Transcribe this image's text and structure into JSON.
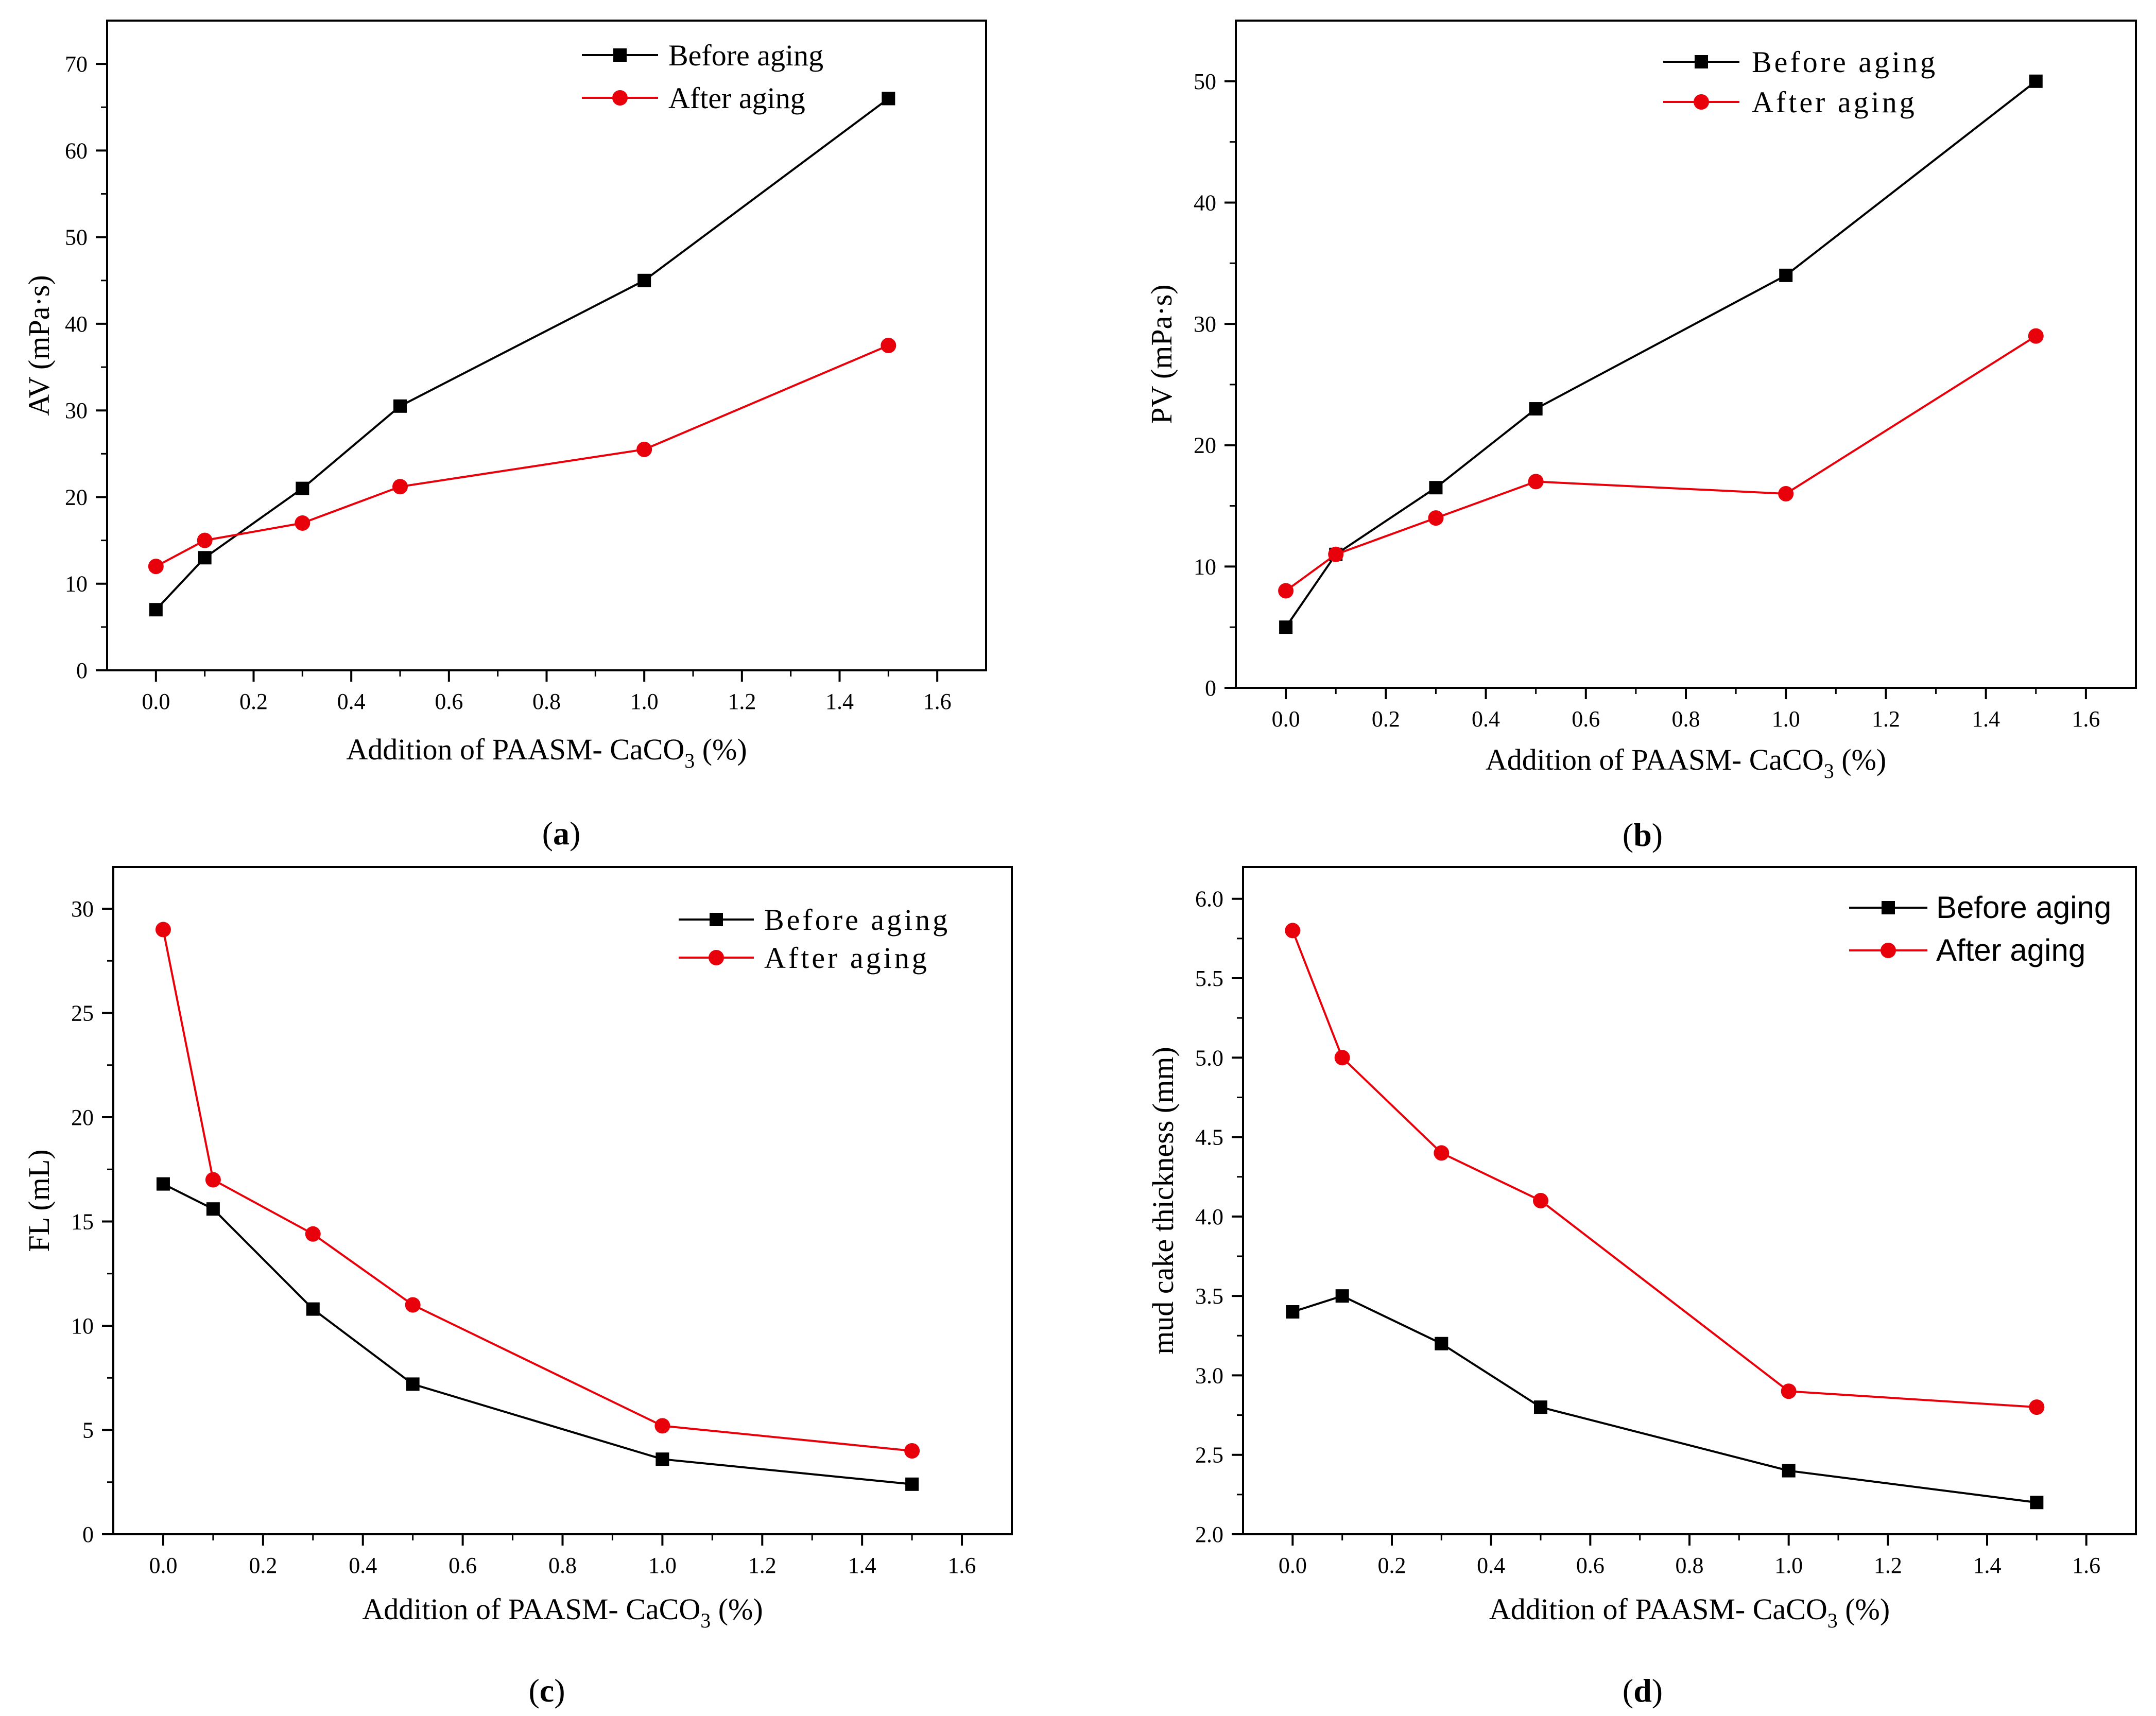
{
  "chart_data": [
    {
      "id": "a",
      "type": "line",
      "caption": {
        "open": "(",
        "letter": "a",
        "close": ")"
      },
      "xlabel": {
        "main": "Addition of PAASM- CaCO",
        "sub": "3",
        "tail": " (%)"
      },
      "ylabel": "AV (mPa·s)",
      "xlim": [
        -0.1,
        1.7
      ],
      "ylim": [
        0,
        75
      ],
      "xticks": [
        "0.0",
        "0.2",
        "0.4",
        "0.6",
        "0.8",
        "1.0",
        "1.2",
        "1.4",
        "1.6"
      ],
      "yticks": [
        "0",
        "10",
        "20",
        "30",
        "40",
        "50",
        "60",
        "70"
      ],
      "x": [
        0.0,
        0.1,
        0.3,
        0.5,
        1.0,
        1.5
      ],
      "series": [
        {
          "name": "Before aging",
          "color": "#000000",
          "marker": "square",
          "values": [
            7,
            13,
            21,
            30.5,
            45,
            66
          ]
        },
        {
          "name": "After aging",
          "color": "#e8000b",
          "marker": "circle",
          "values": [
            12,
            15,
            17,
            21.2,
            25.5,
            37.5
          ]
        }
      ],
      "legend": "top-right"
    },
    {
      "id": "b",
      "type": "line",
      "caption": {
        "open": "(",
        "letter": "b",
        "close": ")"
      },
      "xlabel": {
        "main": "Addition of PAASM- CaCO",
        "sub": "3",
        "tail": " (%)"
      },
      "ylabel": "PV (mPa·s)",
      "xlim": [
        -0.1,
        1.7
      ],
      "ylim": [
        0,
        55
      ],
      "xticks": [
        "0.0",
        "0.2",
        "0.4",
        "0.6",
        "0.8",
        "1.0",
        "1.2",
        "1.4",
        "1.6"
      ],
      "yticks": [
        "0",
        "10",
        "20",
        "30",
        "40",
        "50"
      ],
      "x": [
        0.0,
        0.1,
        0.3,
        0.5,
        1.0,
        1.5
      ],
      "series": [
        {
          "name": "Before aging",
          "color": "#000000",
          "marker": "square",
          "values": [
            5,
            11,
            16.5,
            23,
            34,
            50
          ]
        },
        {
          "name": "After aging",
          "color": "#e8000b",
          "marker": "circle",
          "values": [
            8,
            11,
            14,
            17,
            16,
            29
          ]
        }
      ],
      "legend": "top-right"
    },
    {
      "id": "c",
      "type": "line",
      "caption": {
        "open": "(",
        "letter": "c",
        "close": ")"
      },
      "xlabel": {
        "main": "Addition of PAASM- CaCO",
        "sub": "3",
        "tail": " (%)"
      },
      "ylabel": "FL (mL)",
      "xlim": [
        -0.1,
        1.7
      ],
      "ylim": [
        0,
        32
      ],
      "xticks": [
        "0.0",
        "0.2",
        "0.4",
        "0.6",
        "0.8",
        "1.0",
        "1.2",
        "1.4",
        "1.6"
      ],
      "yticks": [
        "0",
        "5",
        "10",
        "15",
        "20",
        "25",
        "30"
      ],
      "x": [
        0.0,
        0.1,
        0.3,
        0.5,
        1.0,
        1.5
      ],
      "series": [
        {
          "name": "Before aging",
          "color": "#000000",
          "marker": "square",
          "values": [
            16.8,
            15.6,
            10.8,
            7.2,
            3.6,
            2.4
          ]
        },
        {
          "name": "After aging",
          "color": "#e8000b",
          "marker": "circle",
          "values": [
            29,
            17,
            14.4,
            11,
            5.2,
            4
          ]
        }
      ],
      "legend": "top-right"
    },
    {
      "id": "d",
      "type": "line",
      "caption": {
        "open": "(",
        "letter": "d",
        "close": ")"
      },
      "xlabel": {
        "main": "Addition of PAASM- CaCO",
        "sub": "3",
        "tail": " (%)"
      },
      "ylabel": "mud cake thickness (mm)",
      "xlim": [
        -0.1,
        1.7
      ],
      "ylim": [
        2.0,
        6.2
      ],
      "xticks": [
        "0.0",
        "0.2",
        "0.4",
        "0.6",
        "0.8",
        "1.0",
        "1.2",
        "1.4",
        "1.6"
      ],
      "yticks": [
        "2.0",
        "2.5",
        "3.0",
        "3.5",
        "4.0",
        "4.5",
        "5.0",
        "5.5",
        "6.0"
      ],
      "x": [
        0.0,
        0.1,
        0.3,
        0.5,
        1.0,
        1.5
      ],
      "series": [
        {
          "name": "Before aging",
          "color": "#000000",
          "marker": "square",
          "values": [
            3.4,
            3.5,
            3.2,
            2.8,
            2.4,
            2.2
          ]
        },
        {
          "name": "After aging",
          "color": "#e8000b",
          "marker": "circle",
          "values": [
            5.8,
            5.0,
            4.4,
            4.1,
            2.9,
            2.8
          ]
        }
      ],
      "legend": "top-right"
    }
  ]
}
